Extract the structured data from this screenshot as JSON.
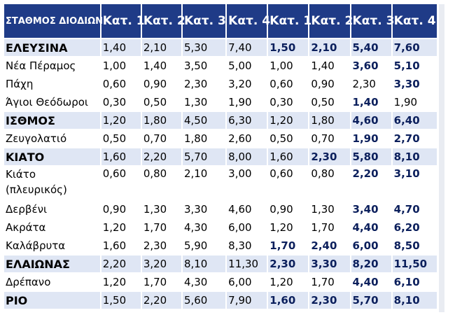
{
  "header": {
    "station": "ΣΤΑΘΜΟΣ ΔΙΟΔΙΩΝ",
    "categories": [
      "Κατ. 1",
      "Κατ. 2",
      "Κατ. 3",
      "Κατ. 4",
      "Κατ. 1",
      "Κατ. 2",
      "Κατ. 3",
      "Κατ. 4"
    ]
  },
  "rows": [
    {
      "station": "ΕΛΕΥΣΙΝΑ",
      "major": true,
      "tall": false,
      "values": [
        "1,40",
        "2,10",
        "5,30",
        "7,40",
        "1,50",
        "2,10",
        "5,40",
        "7,60"
      ],
      "bold": [
        false,
        false,
        false,
        false,
        true,
        true,
        true,
        true
      ]
    },
    {
      "station": "Νέα Πέραμος",
      "major": false,
      "tall": false,
      "values": [
        "1,00",
        "1,40",
        "3,50",
        "5,00",
        "1,00",
        "1,40",
        "3,60",
        "5,10"
      ],
      "bold": [
        false,
        false,
        false,
        false,
        false,
        false,
        true,
        true
      ]
    },
    {
      "station": "Πάχη",
      "major": false,
      "tall": false,
      "values": [
        "0,60",
        "0,90",
        "2,30",
        "3,20",
        "0,60",
        "0,90",
        "2,30",
        "3,30"
      ],
      "bold": [
        false,
        false,
        false,
        false,
        false,
        false,
        false,
        true
      ]
    },
    {
      "station": "Άγιοι Θεόδωροι",
      "major": false,
      "tall": false,
      "values": [
        "0,30",
        "0,50",
        "1,30",
        "1,90",
        "0,30",
        "0,50",
        "1,40",
        "1,90"
      ],
      "bold": [
        false,
        false,
        false,
        false,
        false,
        false,
        true,
        false
      ]
    },
    {
      "station": "ΙΣΘΜΟΣ",
      "major": true,
      "tall": false,
      "values": [
        "1,20",
        "1,80",
        "4,50",
        "6,30",
        "1,20",
        "1,80",
        "4,60",
        "6,40"
      ],
      "bold": [
        false,
        false,
        false,
        false,
        false,
        false,
        true,
        true
      ]
    },
    {
      "station": "Ζευγολατιό",
      "major": false,
      "tall": false,
      "values": [
        "0,50",
        "0,70",
        "1,80",
        "2,60",
        "0,50",
        "0,70",
        "1,90",
        "2,70"
      ],
      "bold": [
        false,
        false,
        false,
        false,
        false,
        false,
        true,
        true
      ]
    },
    {
      "station": "ΚΙΑΤΟ",
      "major": true,
      "tall": false,
      "values": [
        "1,60",
        "2,20",
        "5,70",
        "8,00",
        "1,60",
        "2,30",
        "5,80",
        "8,10"
      ],
      "bold": [
        false,
        false,
        false,
        false,
        false,
        true,
        true,
        true
      ]
    },
    {
      "station": "Κιάτο (πλευρικός)",
      "major": false,
      "tall": true,
      "values": [
        "0,60",
        "0,80",
        "2,10",
        "3,00",
        "0,60",
        "0,80",
        "2,20",
        "3,10"
      ],
      "bold": [
        false,
        false,
        false,
        false,
        false,
        false,
        true,
        true
      ]
    },
    {
      "station": "Δερβένι",
      "major": false,
      "tall": false,
      "values": [
        "0,90",
        "1,30",
        "3,30",
        "4,60",
        "0,90",
        "1,30",
        "3,40",
        "4,70"
      ],
      "bold": [
        false,
        false,
        false,
        false,
        false,
        false,
        true,
        true
      ]
    },
    {
      "station": "Ακράτα",
      "major": false,
      "tall": false,
      "values": [
        "1,20",
        "1,70",
        "4,30",
        "6,00",
        "1,20",
        "1,70",
        "4,40",
        "6,20"
      ],
      "bold": [
        false,
        false,
        false,
        false,
        false,
        false,
        true,
        true
      ]
    },
    {
      "station": "Καλάβρυτα",
      "major": false,
      "tall": false,
      "values": [
        "1,60",
        "2,30",
        "5,90",
        "8,30",
        "1,70",
        "2,40",
        "6,00",
        "8,50"
      ],
      "bold": [
        false,
        false,
        false,
        false,
        true,
        true,
        true,
        true
      ]
    },
    {
      "station": "ΕΛΑΙΩΝΑΣ",
      "major": true,
      "tall": false,
      "values": [
        "2,20",
        "3,20",
        "8,10",
        "11,30",
        "2,30",
        "3,30",
        "8,20",
        "11,50"
      ],
      "bold": [
        false,
        false,
        false,
        false,
        true,
        true,
        true,
        true
      ]
    },
    {
      "station": "Δρέπανο",
      "major": false,
      "tall": false,
      "values": [
        "1,20",
        "1,70",
        "4,30",
        "6,00",
        "1,20",
        "1,70",
        "4,40",
        "6,10"
      ],
      "bold": [
        false,
        false,
        false,
        false,
        false,
        false,
        true,
        true
      ]
    },
    {
      "station": "ΡΙΟ",
      "major": true,
      "tall": false,
      "values": [
        "1,50",
        "2,20",
        "5,60",
        "7,90",
        "1,60",
        "2,30",
        "5,70",
        "8,10"
      ],
      "bold": [
        false,
        false,
        false,
        false,
        true,
        true,
        true,
        true
      ]
    }
  ],
  "colors": {
    "header_bg": "#1f3b87",
    "major_row_bg": "#dfe6f4",
    "bold_value": "#0b1f5c"
  }
}
